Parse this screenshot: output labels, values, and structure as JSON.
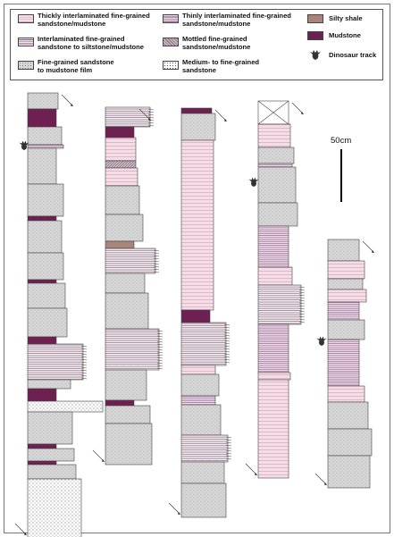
{
  "legend": {
    "items": [
      {
        "key": "thick",
        "line1": "Thickly interlaminated fine-grained",
        "line2": "sandstone/mudstone"
      },
      {
        "key": "thin",
        "line1": "Thinly interlaminated fine-grained",
        "line2": "sandstone/mudstone"
      },
      {
        "key": "silty",
        "line1": "Silty shale",
        "line2": ""
      },
      {
        "key": "inter",
        "line1": "Interlaminated fine-grained",
        "line2": "sandstone to siltstone/mudstone"
      },
      {
        "key": "mottled",
        "line1": "Mottled fine-grained",
        "line2": "sandstone/mudstone"
      },
      {
        "key": "mud",
        "line1": "Mudstone",
        "line2": ""
      },
      {
        "key": "fine",
        "line1": "Fine-grained sandstone",
        "line2": "to mudstone film"
      },
      {
        "key": "medium",
        "line1": "Medium- to fine-grained",
        "line2": "sandstone"
      },
      {
        "key": "track",
        "line1": "Dinosaur track",
        "line2": ""
      }
    ]
  },
  "scale_bar": {
    "label": "50cm"
  },
  "colors": {
    "mudstone": "#6e2050",
    "silty_shale": "#a98478",
    "thick_bg": "#f5dce6",
    "thin_bg": "#efdae8",
    "thin_line": "#7a4a7a",
    "fine_sand": "#d6d6d6",
    "frame": "#777777"
  }
}
